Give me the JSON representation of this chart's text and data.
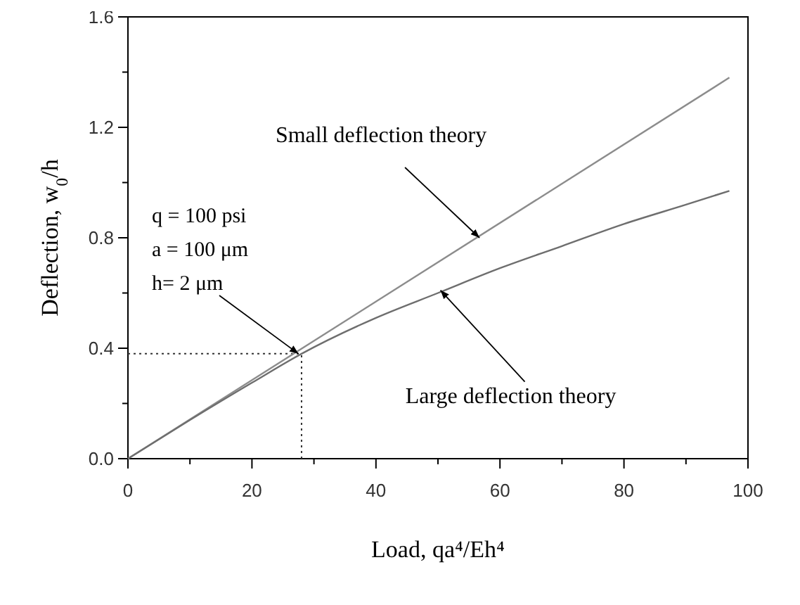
{
  "chart_data": {
    "type": "line",
    "xlabel": "Load, qa⁴/Eh⁴",
    "ylabel": "Deflection, w$_{0}$/h",
    "xlim": [
      0,
      100
    ],
    "ylim": [
      0,
      1.6
    ],
    "xticks": [
      0,
      {
        "value": 10,
        "label": null
      },
      20,
      {
        "value": 30,
        "label": null
      },
      40,
      {
        "value": 50,
        "label": null
      },
      60,
      {
        "value": 70,
        "label": null
      },
      80,
      {
        "value": 90,
        "label": null
      },
      100
    ],
    "yticks": [
      {
        "value": 0,
        "label": "0.0"
      },
      {
        "value": 0.2,
        "label": null
      },
      0.4,
      {
        "value": 0.6,
        "label": null
      },
      0.8,
      {
        "value": 1.0,
        "label": null
      },
      1.2,
      {
        "value": 1.4,
        "label": null
      },
      1.6
    ],
    "series": [
      {
        "color": "#8c8c8c",
        "x": [
          0,
          97
        ],
        "values": [
          0,
          1.38
        ]
      },
      {
        "color": "#6e6e6e",
        "x": [
          0,
          10,
          20,
          28,
          40,
          50,
          60,
          70,
          80,
          90,
          97
        ],
        "values": [
          0,
          0.14,
          0.275,
          0.38,
          0.51,
          0.6,
          0.69,
          0.77,
          0.85,
          0.92,
          0.97
        ]
      }
    ],
    "ref_lines": [
      {
        "axis": "y",
        "value": 0.38,
        "line_style": "dotted",
        "color": "#333333"
      },
      {
        "axis": "x",
        "value": 28,
        "line_style": "dotted",
        "color": "#333333"
      }
    ],
    "annotations": [
      {
        "text": "Small deflection theory",
        "x": 56.7,
        "y": 0.8
      },
      {
        "text": "Large deflection theory",
        "x": 50.4,
        "y": 0.61
      },
      "q = 100 psi",
      "a = 100 μm",
      {
        "text": "h= 2 μm",
        "x": 27.5,
        "y": 0.38
      }
    ],
    "grid": false,
    "line_style": "solid"
  }
}
